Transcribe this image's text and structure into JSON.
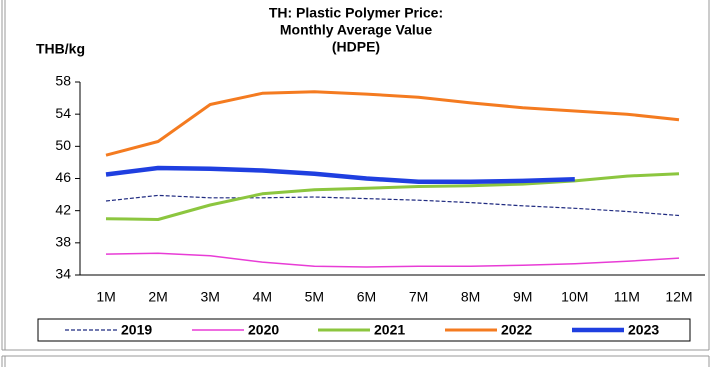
{
  "chart_data": {
    "type": "line",
    "title": [
      "TH: Plastic Polymer Price:",
      "Monthly Average Value",
      "(HDPE)"
    ],
    "y_label": "THB/kg",
    "categories": [
      "1M",
      "2M",
      "3M",
      "4M",
      "5M",
      "6M",
      "7M",
      "8M",
      "9M",
      "10M",
      "11M",
      "12M"
    ],
    "ylim": [
      34,
      58
    ],
    "yticks": [
      34,
      38,
      42,
      46,
      50,
      54,
      58
    ],
    "legend": "bottom",
    "series": [
      {
        "name": "2019",
        "color": "#1f2a80",
        "width": 1.2,
        "dash": true,
        "values": [
          43.2,
          43.9,
          43.6,
          43.6,
          43.7,
          43.5,
          43.3,
          43.0,
          42.6,
          42.3,
          41.9,
          41.4
        ]
      },
      {
        "name": "2020",
        "color": "#e83cd6",
        "width": 1.5,
        "dash": false,
        "values": [
          36.6,
          36.7,
          36.4,
          35.6,
          35.1,
          35.0,
          35.1,
          35.1,
          35.2,
          35.4,
          35.7,
          36.1
        ]
      },
      {
        "name": "2021",
        "color": "#8cc63f",
        "width": 3,
        "dash": false,
        "values": [
          41.0,
          40.9,
          42.7,
          44.1,
          44.6,
          44.8,
          45.0,
          45.1,
          45.3,
          45.7,
          46.3,
          46.6
        ]
      },
      {
        "name": "2022",
        "color": "#f47b20",
        "width": 3,
        "dash": false,
        "values": [
          48.9,
          50.6,
          55.2,
          56.6,
          56.8,
          56.5,
          56.1,
          55.4,
          54.8,
          54.4,
          54.0,
          53.3
        ]
      },
      {
        "name": "2023",
        "color": "#1f3fe0",
        "width": 4.5,
        "dash": false,
        "values": [
          46.5,
          47.3,
          47.2,
          47.0,
          46.6,
          46.0,
          45.6,
          45.6,
          45.7,
          45.9,
          null,
          null
        ]
      }
    ]
  }
}
